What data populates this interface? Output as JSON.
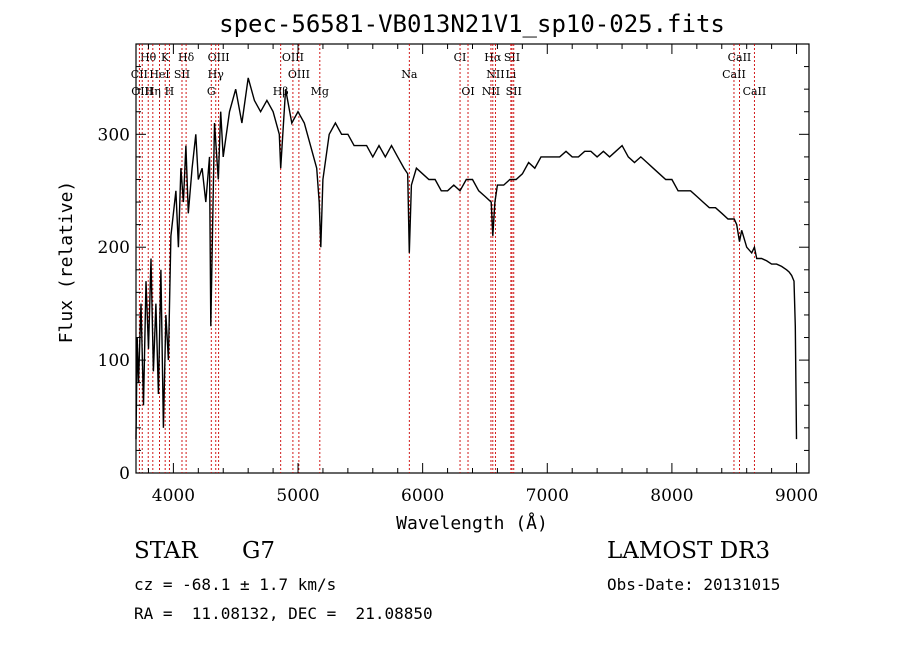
{
  "chart_data": {
    "type": "line",
    "title": "spec-56581-VB013N21V1_sp10-025.fits",
    "xlabel": "Wavelength (Å)",
    "ylabel": "Flux (relative)",
    "xlim": [
      3700,
      9100
    ],
    "ylim": [
      0,
      380
    ],
    "xticks": [
      4000,
      5000,
      6000,
      7000,
      8000,
      9000
    ],
    "yticks": [
      0,
      100,
      200,
      300
    ],
    "line_color": "#000000",
    "marker_color": "#cc0000",
    "series": [
      {
        "x": [
          3700,
          3710,
          3720,
          3740,
          3760,
          3780,
          3800,
          3820,
          3840,
          3860,
          3880,
          3900,
          3920,
          3940,
          3960,
          3980,
          4000,
          4020,
          4040,
          4060,
          4080,
          4100,
          4120,
          4150,
          4180,
          4200,
          4230,
          4260,
          4290,
          4300,
          4330,
          4360,
          4380,
          4400,
          4450,
          4500,
          4550,
          4600,
          4650,
          4700,
          4750,
          4800,
          4850,
          4861,
          4900,
          4950,
          5000,
          5050,
          5100,
          5150,
          5170,
          5183,
          5200,
          5250,
          5300,
          5350,
          5400,
          5450,
          5500,
          5550,
          5600,
          5650,
          5700,
          5750,
          5800,
          5850,
          5880,
          5893,
          5910,
          5950,
          6000,
          6050,
          6100,
          6150,
          6200,
          6250,
          6300,
          6350,
          6400,
          6450,
          6500,
          6550,
          6563,
          6580,
          6600,
          6650,
          6700,
          6750,
          6800,
          6850,
          6900,
          6950,
          7000,
          7050,
          7100,
          7150,
          7200,
          7250,
          7300,
          7350,
          7400,
          7450,
          7500,
          7550,
          7600,
          7650,
          7700,
          7750,
          7800,
          7850,
          7900,
          7950,
          8000,
          8050,
          8100,
          8150,
          8200,
          8250,
          8300,
          8350,
          8400,
          8450,
          8500,
          8520,
          8542,
          8560,
          8600,
          8640,
          8662,
          8680,
          8720,
          8760,
          8800,
          8840,
          8880,
          8920,
          8940,
          8960,
          8980,
          8990,
          9000
        ],
        "y": [
          30,
          120,
          80,
          150,
          60,
          170,
          110,
          190,
          90,
          150,
          70,
          180,
          40,
          140,
          100,
          210,
          230,
          250,
          200,
          270,
          240,
          290,
          230,
          270,
          300,
          260,
          270,
          240,
          280,
          130,
          310,
          260,
          320,
          280,
          320,
          340,
          310,
          350,
          330,
          320,
          330,
          320,
          300,
          270,
          340,
          310,
          320,
          310,
          290,
          270,
          240,
          200,
          260,
          300,
          310,
          300,
          300,
          290,
          290,
          290,
          280,
          290,
          280,
          290,
          280,
          270,
          265,
          195,
          255,
          270,
          265,
          260,
          260,
          250,
          250,
          255,
          250,
          260,
          260,
          250,
          245,
          240,
          210,
          240,
          255,
          255,
          260,
          260,
          265,
          275,
          270,
          280,
          280,
          280,
          280,
          285,
          280,
          280,
          285,
          285,
          280,
          285,
          280,
          285,
          290,
          280,
          275,
          280,
          275,
          270,
          265,
          260,
          260,
          250,
          250,
          250,
          245,
          240,
          235,
          235,
          230,
          225,
          225,
          220,
          205,
          215,
          200,
          195,
          200,
          190,
          190,
          188,
          185,
          185,
          183,
          180,
          178,
          175,
          170,
          130,
          30
        ],
        "stroke_width": 1.4
      }
    ],
    "line_markers": [
      {
        "label": "Hθ",
        "wave": 3798,
        "row": 1
      },
      {
        "label": "K",
        "wave": 3934,
        "row": 1
      },
      {
        "label": "Hδ",
        "wave": 4102,
        "row": 1
      },
      {
        "label": "OIII",
        "wave": 4363,
        "row": 1
      },
      {
        "label": "OIII",
        "wave": 4959,
        "row": 1
      },
      {
        "label": "CI",
        "wave": 6300,
        "row": 1
      },
      {
        "label": "Hα",
        "wave": 6563,
        "row": 1
      },
      {
        "label": "SII",
        "wave": 6717,
        "row": 1
      },
      {
        "label": "CaII",
        "wave": 8542,
        "row": 1
      },
      {
        "label": "CII",
        "wave": 3727,
        "row": 2
      },
      {
        "label": "HeI",
        "wave": 3889,
        "row": 2
      },
      {
        "label": "SII",
        "wave": 4069,
        "row": 2
      },
      {
        "label": "Hγ",
        "wave": 4340,
        "row": 2
      },
      {
        "label": "OIII",
        "wave": 5007,
        "row": 2
      },
      {
        "label": "NII",
        "wave": 6584,
        "row": 2
      },
      {
        "label": "Li",
        "wave": 6708,
        "row": 2
      },
      {
        "label": "CaII",
        "wave": 8498,
        "row": 2
      },
      {
        "label": "OIII",
        "wave": 3750,
        "row": 3
      },
      {
        "label": "Hη",
        "wave": 3835,
        "row": 3
      },
      {
        "label": "H",
        "wave": 3968,
        "row": 3
      },
      {
        "label": "G",
        "wave": 4304,
        "row": 3
      },
      {
        "label": "Hβ",
        "wave": 4861,
        "row": 3
      },
      {
        "label": "Mg",
        "wave": 5175,
        "row": 3
      },
      {
        "label": "Na",
        "wave": 5893,
        "row": 2
      },
      {
        "label": "OI",
        "wave": 6364,
        "row": 3
      },
      {
        "label": "NII",
        "wave": 6548,
        "row": 3
      },
      {
        "label": "SII",
        "wave": 6731,
        "row": 3
      },
      {
        "label": "CaII",
        "wave": 8662,
        "row": 3
      }
    ]
  },
  "info": {
    "object_class": "STAR",
    "subclass": "G7",
    "survey": "LAMOST DR3",
    "cz": "cz = -68.1 ± 1.7 km/s",
    "obs_date": "Obs-Date: 20131015",
    "coords": "RA =  11.08132, DEC =  21.08850"
  }
}
